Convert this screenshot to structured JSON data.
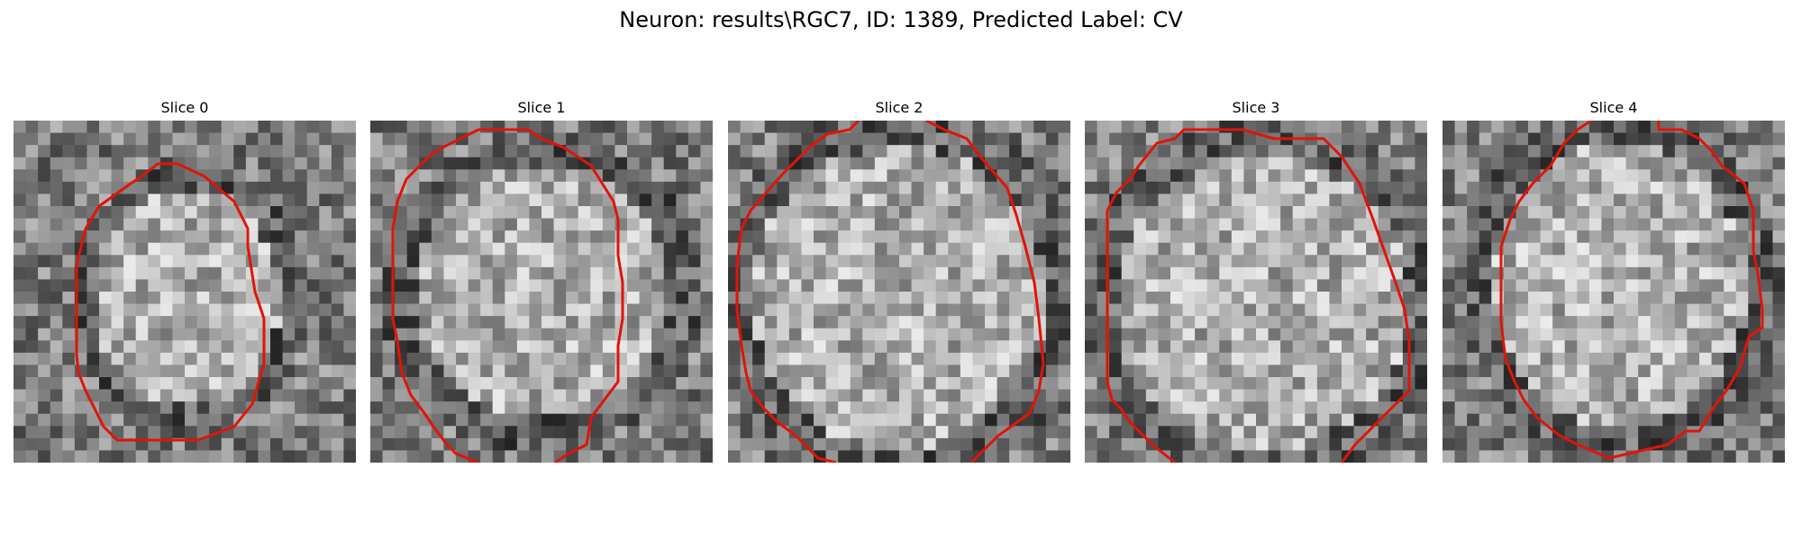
{
  "figure": {
    "title": "Neuron: results\\RGC7, ID: 1389, Predicted Label: CV"
  },
  "panels": [
    {
      "title": "Slice 0"
    },
    {
      "title": "Slice 1"
    },
    {
      "title": "Slice 2"
    },
    {
      "title": "Slice 3"
    },
    {
      "title": "Slice 4"
    }
  ],
  "colors": {
    "contour": "#e0140a",
    "background": "#ffffff"
  }
}
